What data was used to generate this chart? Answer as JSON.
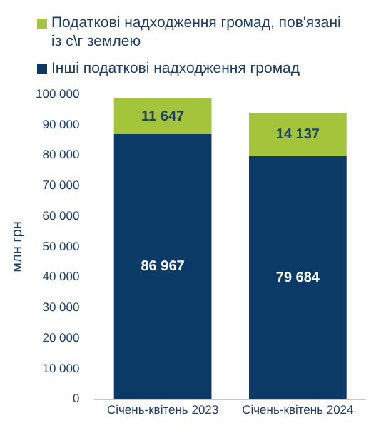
{
  "chart_data": {
    "type": "bar",
    "stacked": true,
    "ylabel": "млн грн",
    "categories": [
      "Січень-квітень 2023",
      "Січень-квітень 2024"
    ],
    "series": [
      {
        "name": "Інші податкові надходження громад",
        "color": "#0b3a66",
        "values": [
          86967,
          79684
        ],
        "value_labels": [
          "86 967",
          "79 684"
        ]
      },
      {
        "name": "Податкові надходження громад, пов'язані із с\\г землею",
        "color": "#a3c43b",
        "values": [
          11647,
          14137
        ],
        "value_labels": [
          "11 647",
          "14 137"
        ]
      }
    ],
    "ylim": [
      0,
      100000
    ],
    "yticks": [
      0,
      {
        "value": 10000,
        "label": "10 000"
      },
      {
        "value": 20000,
        "label": "20 000"
      },
      {
        "value": 30000,
        "label": "30 000"
      },
      {
        "value": 40000,
        "label": "40 000"
      },
      {
        "value": 50000,
        "label": "50 000"
      },
      {
        "value": 60000,
        "label": "60 000"
      },
      {
        "value": 70000,
        "label": "70 000"
      },
      {
        "value": 80000,
        "label": "80 000"
      },
      {
        "value": 90000,
        "label": "90 000"
      },
      {
        "value": 100000,
        "label": "100 000"
      }
    ],
    "grid": false,
    "legend": "top"
  }
}
